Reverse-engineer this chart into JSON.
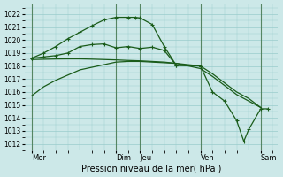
{
  "background_color": "#cce8e8",
  "grid_color": "#99cccc",
  "line_color": "#1a5c1a",
  "xlabel": "Pression niveau de la mer( hPa )",
  "ylim": [
    1011.5,
    1022.8
  ],
  "yticks": [
    1012,
    1013,
    1014,
    1015,
    1016,
    1017,
    1018,
    1019,
    1020,
    1021,
    1022
  ],
  "vlines_x": [
    0,
    3.5,
    4.5,
    7.0,
    9.5
  ],
  "xtick_pos": [
    0,
    3.5,
    4.5,
    7.0,
    9.5
  ],
  "xtick_lab": [
    "Mer",
    "Dim",
    "Jeu",
    "Ven",
    "Sam"
  ],
  "line1_x": [
    0,
    0.5,
    1.0,
    1.5,
    2.0,
    2.5,
    3.0,
    3.5,
    4.0,
    4.5,
    5.0,
    5.5,
    6.0,
    6.5,
    7.0,
    7.5,
    8.0,
    8.5,
    9.0,
    9.5
  ],
  "line1_y": [
    1015.7,
    1016.4,
    1016.9,
    1017.3,
    1017.7,
    1017.9,
    1018.1,
    1018.3,
    1018.35,
    1018.35,
    1018.3,
    1018.25,
    1018.2,
    1018.1,
    1018.0,
    1017.4,
    1016.7,
    1016.0,
    1015.5,
    1014.8
  ],
  "line2_x": [
    0,
    0.5,
    1.0,
    1.5,
    2.0,
    2.5,
    3.0,
    3.5,
    4.0,
    4.5,
    5.0,
    5.5,
    6.0,
    6.5,
    7.0,
    7.5,
    8.0,
    8.5,
    9.0,
    9.5
  ],
  "line2_y": [
    1018.5,
    1018.52,
    1018.54,
    1018.55,
    1018.55,
    1018.53,
    1018.5,
    1018.47,
    1018.43,
    1018.4,
    1018.35,
    1018.3,
    1018.2,
    1018.0,
    1017.8,
    1017.2,
    1016.5,
    1015.8,
    1015.3,
    1014.8
  ],
  "line3_x": [
    0,
    0.5,
    1.0,
    1.5,
    2.0,
    2.5,
    3.0,
    3.5,
    4.0,
    4.5,
    5.0,
    5.5,
    6.0,
    7.0
  ],
  "line3_y": [
    1018.6,
    1018.7,
    1018.8,
    1019.0,
    1019.5,
    1019.65,
    1019.7,
    1019.4,
    1019.5,
    1019.35,
    1019.45,
    1019.2,
    1018.05,
    1018.0
  ],
  "line4_x": [
    0,
    0.5,
    1.0,
    1.5,
    2.0,
    2.5,
    3.0,
    3.5,
    4.0,
    4.3,
    4.5,
    5.0,
    5.5,
    6.0,
    7.0
  ],
  "line4_y": [
    1018.6,
    1019.0,
    1019.5,
    1020.1,
    1020.6,
    1021.1,
    1021.55,
    1021.75,
    1021.75,
    1021.75,
    1021.7,
    1021.2,
    1019.5,
    1018.05,
    1018.0
  ],
  "line5_x": [
    7.0,
    7.5,
    8.0,
    8.5,
    8.8,
    9.0,
    9.5,
    9.8
  ],
  "line5_y": [
    1018.0,
    1016.0,
    1015.3,
    1013.8,
    1012.2,
    1013.1,
    1014.7,
    1014.7
  ]
}
